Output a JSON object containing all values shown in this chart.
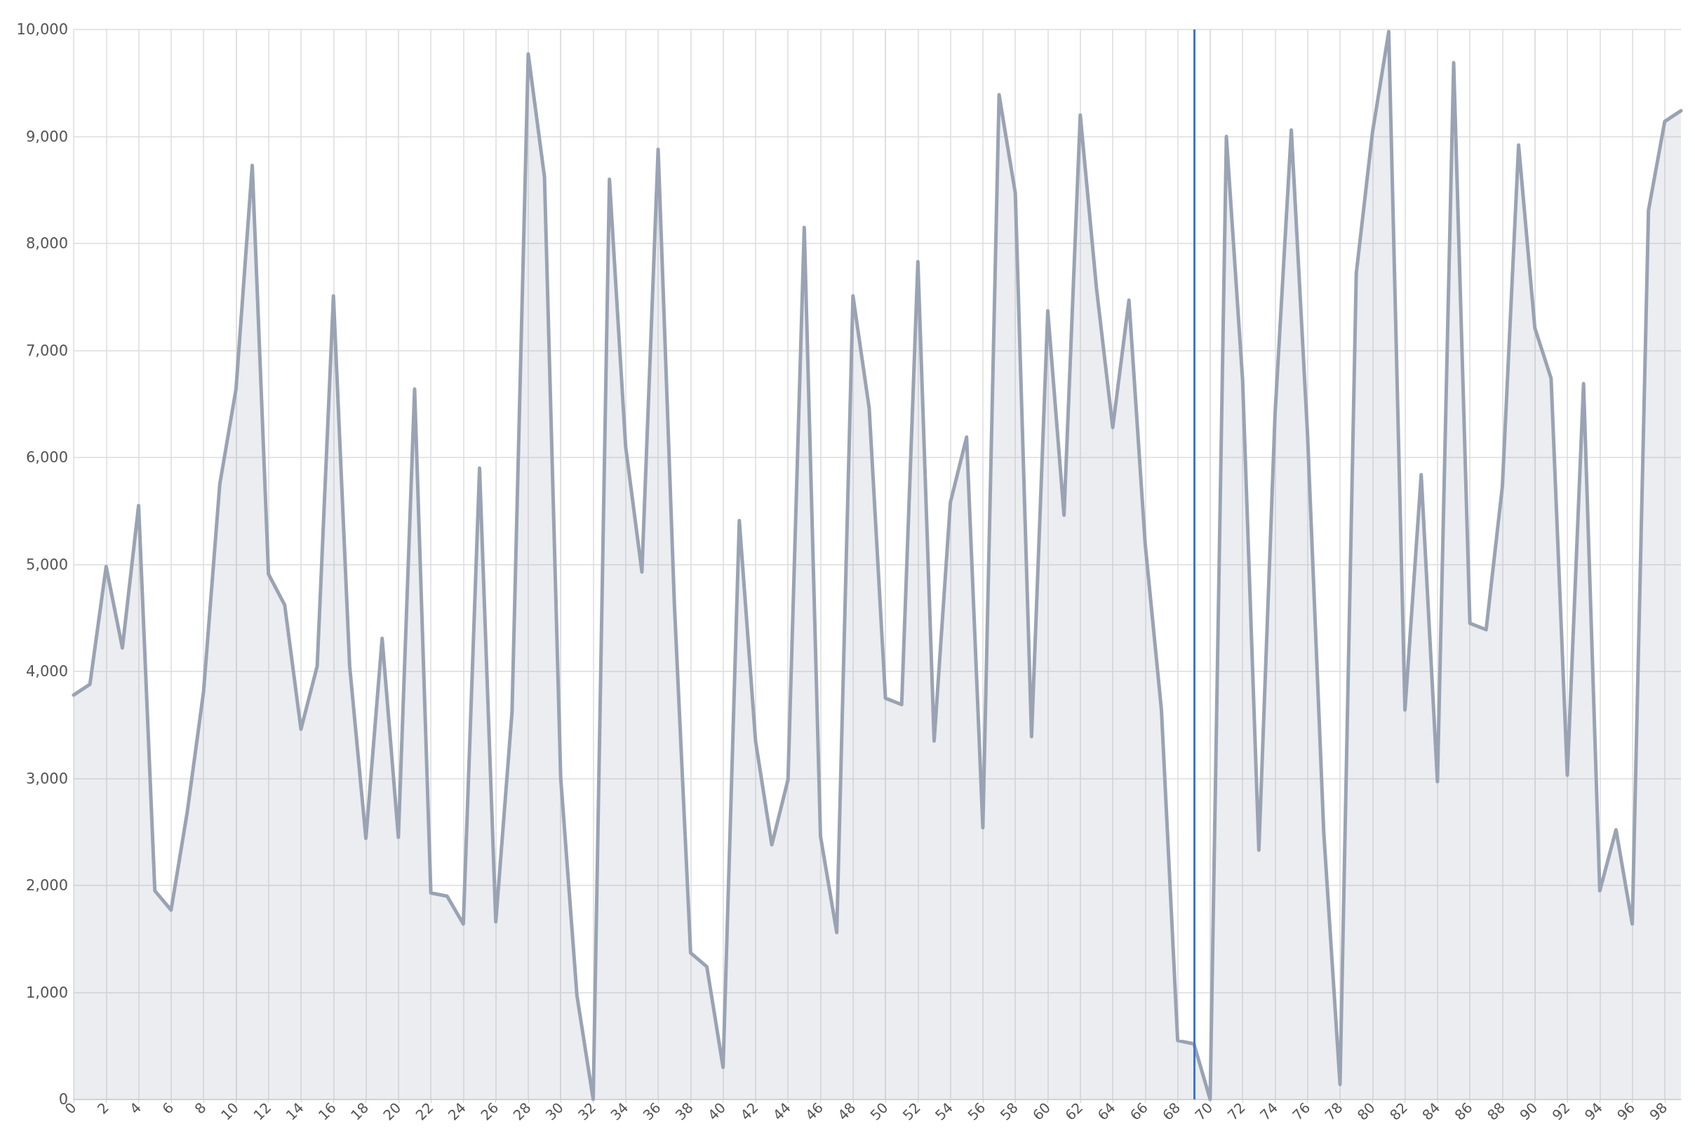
{
  "chart_data": {
    "type": "area",
    "x": [
      0,
      1,
      2,
      3,
      4,
      5,
      6,
      7,
      8,
      9,
      10,
      11,
      12,
      13,
      14,
      15,
      16,
      17,
      18,
      19,
      20,
      21,
      22,
      23,
      24,
      25,
      26,
      27,
      28,
      29,
      30,
      31,
      32,
      33,
      34,
      35,
      36,
      37,
      38,
      39,
      40,
      41,
      42,
      43,
      44,
      45,
      46,
      47,
      48,
      49,
      50,
      51,
      52,
      53,
      54,
      55,
      56,
      57,
      58,
      59,
      60,
      61,
      62,
      63,
      64,
      65,
      66,
      67,
      68,
      69,
      70,
      71,
      72,
      73,
      74,
      75,
      76,
      77,
      78,
      79,
      80,
      81,
      82,
      83,
      84,
      85,
      86,
      87,
      88,
      89,
      90,
      91,
      92,
      93,
      94,
      95,
      96,
      97,
      98,
      99
    ],
    "xlim": [
      0,
      99
    ],
    "xticks": [
      0,
      2,
      4,
      6,
      8,
      10,
      12,
      14,
      16,
      18,
      20,
      22,
      24,
      26,
      28,
      30,
      32,
      34,
      36,
      38,
      40,
      42,
      44,
      46,
      48,
      50,
      52,
      54,
      56,
      58,
      60,
      62,
      64,
      66,
      68,
      70,
      72,
      74,
      76,
      78,
      80,
      82,
      84,
      86,
      88,
      90,
      92,
      94,
      96,
      98
    ],
    "series": [
      {
        "color": "#9aa3b3",
        "values": [
          3780,
          3880,
          4980,
          4220,
          5550,
          1950,
          1770,
          2690,
          3810,
          5750,
          6640,
          8730,
          4910,
          4620,
          3460,
          4050,
          7510,
          4050,
          2440,
          4310,
          2450,
          6640,
          1930,
          1900,
          1640,
          5900,
          1660,
          3620,
          9770,
          8620,
          3000,
          970,
          0,
          8600,
          6100,
          4930,
          8880,
          4630,
          1370,
          1240,
          300,
          5410,
          3350,
          2380,
          2990,
          8150,
          2460,
          1560,
          7510,
          6460,
          3750,
          3690,
          7830,
          3350,
          5580,
          6190,
          2540,
          9390,
          8470,
          3390,
          7370,
          5460,
          9200,
          7580,
          6280,
          7470,
          5190,
          3640,
          550,
          520,
          0,
          9000,
          6720,
          2330,
          6410,
          9060,
          6210,
          2490,
          140,
          7720,
          9040,
          9980,
          3640,
          5840,
          2970,
          9690,
          4450,
          4390,
          5730,
          8920,
          7210,
          6740,
          3030,
          6690,
          1950,
          2520,
          1640,
          8310,
          9140,
          9240
        ]
      }
    ],
    "ylim": [
      0,
      10000
    ],
    "yticks": [
      0,
      {
        "value": 1000,
        "label": "1,000"
      },
      {
        "value": 2000,
        "label": "2,000"
      },
      {
        "value": 3000,
        "label": "3,000"
      },
      {
        "value": 4000,
        "label": "4,000"
      },
      {
        "value": 5000,
        "label": "5,000"
      },
      {
        "value": 6000,
        "label": "6,000"
      },
      {
        "value": 7000,
        "label": "7,000"
      },
      {
        "value": 8000,
        "label": "8,000"
      },
      {
        "value": 9000,
        "label": "9,000"
      },
      {
        "value": 10000,
        "label": "10,000"
      }
    ],
    "ref_lines": [
      {
        "axis": "x",
        "value": 69,
        "color": "#3b74e0"
      }
    ],
    "grid": true,
    "marker": "none",
    "line_style": "solid"
  }
}
